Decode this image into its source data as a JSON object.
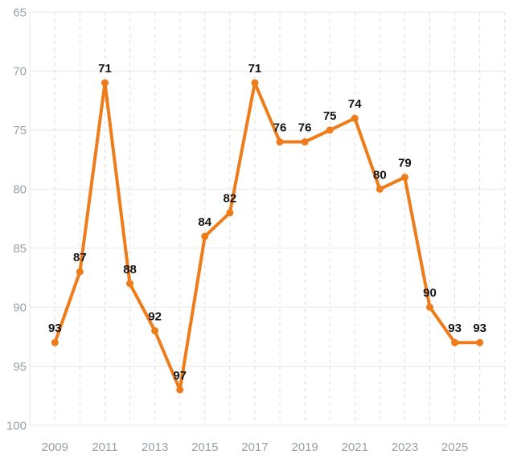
{
  "chart_data": {
    "type": "line",
    "title": "",
    "xlabel": "",
    "ylabel": "",
    "x": [
      2009,
      2010,
      2011,
      2012,
      2013,
      2014,
      2015,
      2016,
      2017,
      2018,
      2019,
      2020,
      2021,
      2022,
      2023,
      2024,
      2025,
      2026
    ],
    "values": [
      93,
      87,
      71,
      88,
      92,
      97,
      84,
      82,
      71,
      76,
      76,
      75,
      74,
      80,
      79,
      90,
      93,
      93
    ],
    "data_labels": [
      "93",
      "87",
      "71",
      "88",
      "92",
      "97",
      "84",
      "82",
      "71",
      "76",
      "76",
      "75",
      "74",
      "80",
      "79",
      "90",
      "93",
      "93"
    ],
    "y_axis": {
      "inverted": true,
      "min": 65,
      "max": 100,
      "ticks": [
        65,
        70,
        75,
        80,
        85,
        90,
        95,
        100
      ],
      "tick_labels": [
        "65",
        "70",
        "75",
        "80",
        "85",
        "90",
        "95",
        "100"
      ]
    },
    "x_axis": {
      "tick_labels": [
        "2009",
        "2011",
        "2013",
        "2015",
        "2017",
        "2019",
        "2021",
        "2023",
        "2025"
      ]
    },
    "grid": {
      "horizontal": "solid",
      "vertical": "dashed"
    },
    "legend": "none",
    "colors": {
      "series": "#ee7c1b",
      "axis_label": "#9aa0a6",
      "data_label": "#141414",
      "grid_horizontal": "#e8e8e8",
      "grid_vertical": "#dcdcdc",
      "background": "#ffffff"
    }
  }
}
